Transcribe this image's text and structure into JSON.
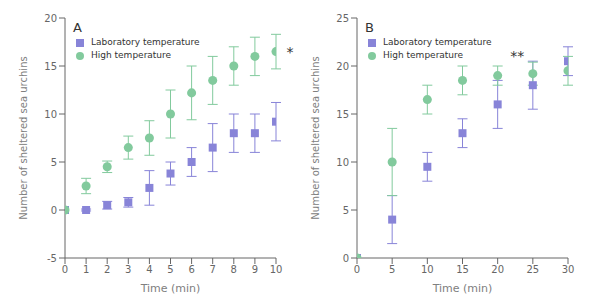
{
  "chart_data": [
    {
      "type": "scatter",
      "title": "A",
      "x_label": "Time (min)",
      "y_label": "Number of sheltered sea urchins",
      "x": [
        0,
        1,
        2,
        3,
        4,
        5,
        6,
        7,
        8,
        9,
        10
      ],
      "xlim": [
        0,
        10
      ],
      "xticks": [
        0,
        1,
        2,
        3,
        4,
        5,
        6,
        7,
        8,
        9,
        10
      ],
      "ylim": [
        -5,
        20
      ],
      "yticks": [
        -5,
        0,
        5,
        10,
        15,
        20
      ],
      "legend": "upper left",
      "series": [
        {
          "name": "Laboratory temperature",
          "marker": "square",
          "color": "#8884d8",
          "values": [
            0,
            0.0,
            0.5,
            0.8,
            2.3,
            3.8,
            5.0,
            6.5,
            8.0,
            8.0,
            9.2
          ],
          "errors": [
            0,
            0.1,
            0.4,
            0.5,
            1.8,
            1.2,
            1.5,
            2.5,
            2.0,
            2.0,
            2.0
          ]
        },
        {
          "name": "High temperature",
          "marker": "circle",
          "color": "#82ca9d",
          "values": [
            0,
            2.5,
            4.5,
            6.5,
            7.5,
            10.0,
            12.2,
            13.5,
            15.0,
            16.0,
            16.5
          ],
          "errors": [
            0,
            0.8,
            0.6,
            1.2,
            1.8,
            2.5,
            2.8,
            2.5,
            2.0,
            2.0,
            1.8
          ]
        }
      ],
      "annotations": [
        {
          "text": "*",
          "x": 10.4,
          "y": 16.5
        }
      ]
    },
    {
      "type": "scatter",
      "title": "B",
      "x_label": "Time (min)",
      "y_label": "Number of sheltered sea urchins",
      "x": [
        0,
        5,
        10,
        15,
        20,
        25,
        30
      ],
      "xlim": [
        0,
        30
      ],
      "xticks": [
        0,
        5,
        10,
        15,
        20,
        25,
        30
      ],
      "ylim": [
        0,
        25
      ],
      "yticks": [
        0,
        5,
        10,
        15,
        20,
        25
      ],
      "legend": "upper left",
      "series": [
        {
          "name": "Laboratory temperature",
          "marker": "square",
          "color": "#8884d8",
          "values": [
            0,
            4.0,
            9.5,
            13.0,
            16.0,
            18.0,
            20.5
          ],
          "errors": [
            0,
            2.5,
            1.5,
            1.5,
            2.5,
            2.5,
            1.5
          ]
        },
        {
          "name": "High temperature",
          "marker": "circle",
          "color": "#82ca9d",
          "values": [
            0,
            10.0,
            16.5,
            18.5,
            19.0,
            19.2,
            19.5
          ],
          "errors": [
            0,
            3.5,
            1.5,
            1.5,
            1.0,
            1.2,
            1.5
          ]
        }
      ],
      "annotations": [
        {
          "text": "**",
          "x": 21.5,
          "y": 21.0
        }
      ]
    }
  ]
}
